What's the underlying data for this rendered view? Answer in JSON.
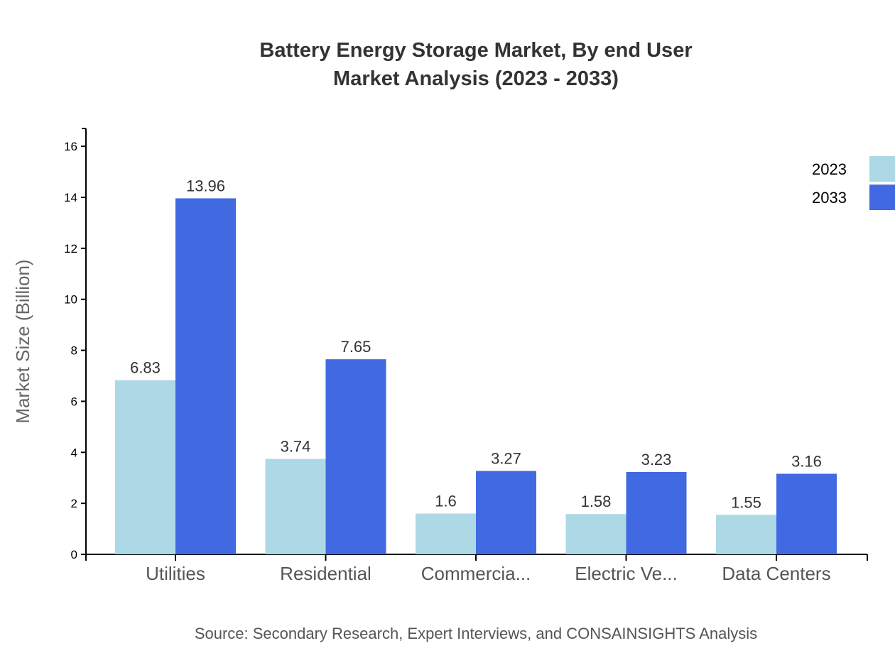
{
  "chart_data": {
    "type": "bar",
    "title": [
      "Battery Energy Storage Market, By end User",
      "Market Analysis (2023 - 2033)"
    ],
    "xlabel": "",
    "ylabel": "Market Size (Billion)",
    "categories": [
      "Utilities",
      "Residential",
      "Commercia...",
      "Electric Ve...",
      "Data Centers"
    ],
    "series": [
      {
        "name": "2023",
        "color": "#add8e6",
        "values": [
          6.83,
          3.74,
          1.6,
          1.58,
          1.55
        ]
      },
      {
        "name": "2033",
        "color": "#4169e1",
        "values": [
          13.96,
          7.65,
          3.27,
          3.23,
          3.16
        ]
      }
    ],
    "ylim": [
      0,
      16.7
    ],
    "yticks": [
      0,
      2,
      4,
      6,
      8,
      10,
      12,
      14,
      16
    ],
    "grid": false,
    "legend": "top-right",
    "source": "Source: Secondary Research, Expert Interviews, and CONSAINSIGHTS Analysis"
  }
}
